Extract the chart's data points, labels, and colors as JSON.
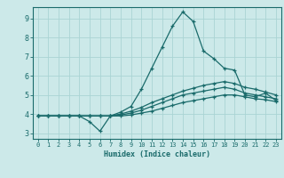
{
  "xlabel": "Humidex (Indice chaleur)",
  "xlim": [
    -0.5,
    23.5
  ],
  "ylim": [
    2.7,
    9.6
  ],
  "xticks": [
    0,
    1,
    2,
    3,
    4,
    5,
    6,
    7,
    8,
    9,
    10,
    11,
    12,
    13,
    14,
    15,
    16,
    17,
    18,
    19,
    20,
    21,
    22,
    23
  ],
  "yticks": [
    3,
    4,
    5,
    6,
    7,
    8,
    9
  ],
  "bg_color": "#cce9e9",
  "grid_color": "#aad4d4",
  "line_color": "#1a6b6b",
  "lines": [
    {
      "x": [
        0,
        1,
        2,
        3,
        4,
        5,
        6,
        7,
        8,
        9,
        10,
        11,
        12,
        13,
        14,
        15,
        16,
        17,
        18,
        19,
        20,
        21,
        22,
        23
      ],
      "y": [
        3.9,
        3.9,
        3.9,
        3.9,
        3.9,
        3.6,
        3.1,
        3.9,
        4.1,
        4.4,
        5.3,
        6.4,
        7.5,
        8.6,
        9.35,
        8.85,
        7.3,
        6.9,
        6.4,
        6.3,
        5.0,
        4.9,
        5.1,
        4.7
      ]
    },
    {
      "x": [
        0,
        1,
        2,
        3,
        4,
        5,
        6,
        7,
        8,
        9,
        10,
        11,
        12,
        13,
        14,
        15,
        16,
        17,
        18,
        19,
        20,
        21,
        22,
        23
      ],
      "y": [
        3.9,
        3.9,
        3.9,
        3.9,
        3.9,
        3.9,
        3.9,
        3.9,
        4.0,
        4.15,
        4.35,
        4.6,
        4.8,
        5.0,
        5.2,
        5.35,
        5.5,
        5.6,
        5.7,
        5.6,
        5.4,
        5.3,
        5.15,
        5.0
      ]
    },
    {
      "x": [
        0,
        1,
        2,
        3,
        4,
        5,
        6,
        7,
        8,
        9,
        10,
        11,
        12,
        13,
        14,
        15,
        16,
        17,
        18,
        19,
        20,
        21,
        22,
        23
      ],
      "y": [
        3.9,
        3.9,
        3.9,
        3.9,
        3.9,
        3.9,
        3.9,
        3.9,
        3.95,
        4.05,
        4.2,
        4.4,
        4.6,
        4.8,
        5.0,
        5.1,
        5.2,
        5.3,
        5.4,
        5.3,
        5.1,
        5.0,
        4.9,
        4.8
      ]
    },
    {
      "x": [
        0,
        1,
        2,
        3,
        4,
        5,
        6,
        7,
        8,
        9,
        10,
        11,
        12,
        13,
        14,
        15,
        16,
        17,
        18,
        19,
        20,
        21,
        22,
        23
      ],
      "y": [
        3.9,
        3.9,
        3.9,
        3.9,
        3.9,
        3.9,
        3.9,
        3.9,
        3.9,
        3.95,
        4.05,
        4.15,
        4.3,
        4.45,
        4.6,
        4.7,
        4.8,
        4.9,
        5.0,
        5.0,
        4.9,
        4.8,
        4.75,
        4.65
      ]
    }
  ]
}
